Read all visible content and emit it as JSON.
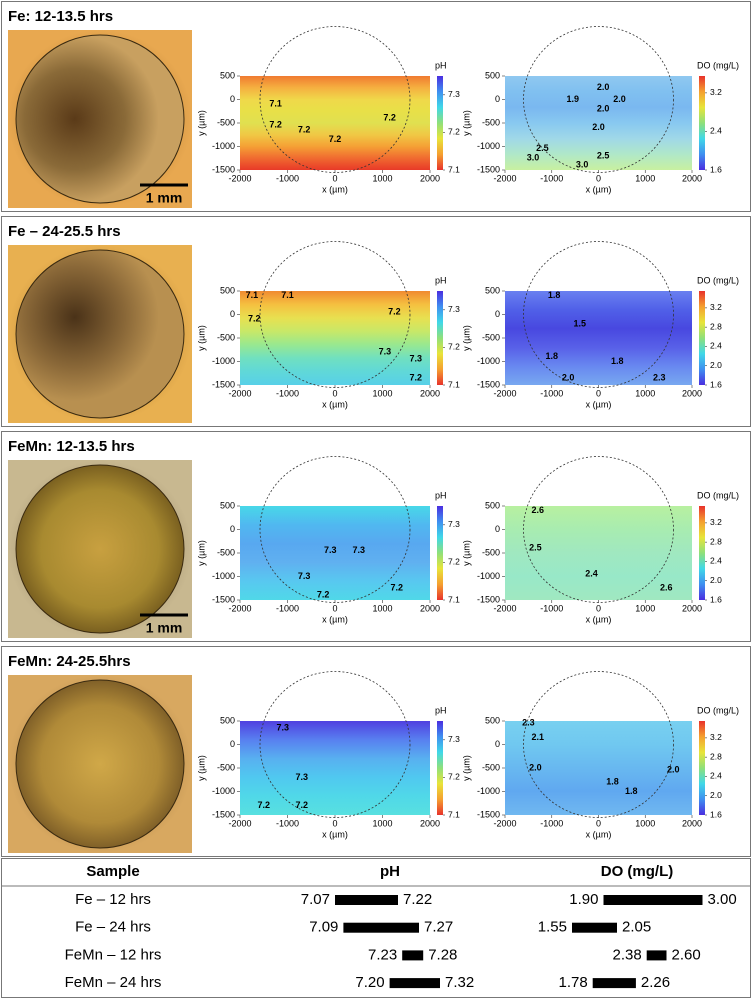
{
  "map_axes": {
    "xlabel": "x (µm)",
    "ylabel": "y (µm)",
    "xlim": [
      -2000,
      2000
    ],
    "ylim": [
      -1500,
      500
    ],
    "xticks": [
      -2000,
      -1000,
      0,
      1000,
      2000
    ],
    "yticks": [
      500,
      0,
      -500,
      -1000,
      -1500
    ]
  },
  "panels": [
    {
      "title": "Fe: 12-13.5 hrs",
      "scale_bar": "1 mm",
      "ph": {
        "label": "pH",
        "clim": [
          7.1,
          7.35
        ],
        "ticks": [
          7.3,
          7.2,
          7.1
        ],
        "contours": [
          {
            "text": "7.1",
            "x": -1250,
            "y": -100
          },
          {
            "text": "7.2",
            "x": -1250,
            "y": -550
          },
          {
            "text": "7.2",
            "x": -650,
            "y": -650
          },
          {
            "text": "7.2",
            "x": 0,
            "y": -850
          },
          {
            "text": "7.2",
            "x": 1150,
            "y": -400
          }
        ]
      },
      "do": {
        "label": "DO (mg/L)",
        "clim": [
          1.6,
          3.55
        ],
        "ticks": [
          3.2,
          2.4,
          1.6
        ],
        "contours": [
          {
            "text": "2.0",
            "x": 100,
            "y": 250
          },
          {
            "text": "1.9",
            "x": -550,
            "y": 0
          },
          {
            "text": "2.0",
            "x": 100,
            "y": -200
          },
          {
            "text": "2.0",
            "x": 450,
            "y": 0
          },
          {
            "text": "2.0",
            "x": 0,
            "y": -600
          },
          {
            "text": "2.5",
            "x": -1200,
            "y": -1050
          },
          {
            "text": "3.0",
            "x": -1400,
            "y": -1250
          },
          {
            "text": "3.0",
            "x": -350,
            "y": -1400
          },
          {
            "text": "2.5",
            "x": 100,
            "y": -1200
          }
        ]
      }
    },
    {
      "title": "Fe – 24-25.5 hrs",
      "ph": {
        "label": "pH",
        "clim": [
          7.1,
          7.35
        ],
        "ticks": [
          7.3,
          7.2,
          7.1
        ],
        "contours": [
          {
            "text": "7.1",
            "x": -1750,
            "y": 400
          },
          {
            "text": "7.1",
            "x": -1000,
            "y": 400
          },
          {
            "text": "7.2",
            "x": -1700,
            "y": -100
          },
          {
            "text": "7.2",
            "x": 1250,
            "y": 50
          },
          {
            "text": "7.3",
            "x": 1050,
            "y": -800
          },
          {
            "text": "7.3",
            "x": 1700,
            "y": -950
          },
          {
            "text": "7.2",
            "x": 1700,
            "y": -1350
          }
        ]
      },
      "do": {
        "label": "DO (mg/L)",
        "clim": [
          1.6,
          3.55
        ],
        "ticks": [
          3.2,
          2.8,
          2.4,
          {
            "value": 2,
            "label": "2.0"
          },
          1.6
        ],
        "contours": [
          {
            "text": "1.8",
            "x": -950,
            "y": 400
          },
          {
            "text": "1.5",
            "x": -400,
            "y": -200
          },
          {
            "text": "1.8",
            "x": -1000,
            "y": -900
          },
          {
            "text": "1.8",
            "x": 400,
            "y": -1000
          },
          {
            "text": "2.0",
            "x": -650,
            "y": -1350
          },
          {
            "text": "2.3",
            "x": 1300,
            "y": -1350
          }
        ]
      }
    },
    {
      "title": "FeMn: 12-13.5 hrs",
      "scale_bar": "1 mm",
      "ph": {
        "label": "pH",
        "clim": [
          7.1,
          7.35
        ],
        "ticks": [
          7.3,
          7.2,
          7.1
        ],
        "contours": [
          {
            "text": "7.3",
            "x": -100,
            "y": -450
          },
          {
            "text": "7.3",
            "x": 500,
            "y": -450
          },
          {
            "text": "7.3",
            "x": -650,
            "y": -1000
          },
          {
            "text": "7.2",
            "x": -250,
            "y": -1400
          },
          {
            "text": "7.2",
            "x": 1300,
            "y": -1250
          }
        ]
      },
      "do": {
        "label": "DO (mg/L)",
        "clim": [
          1.6,
          3.55
        ],
        "ticks": [
          3.2,
          2.8,
          2.4,
          {
            "value": 2,
            "label": "2.0"
          },
          1.6
        ],
        "contours": [
          {
            "text": "2.6",
            "x": -1300,
            "y": 400
          },
          {
            "text": "2.5",
            "x": -1350,
            "y": -400
          },
          {
            "text": "2.4",
            "x": -150,
            "y": -950
          },
          {
            "text": "2.6",
            "x": 1450,
            "y": -1250
          }
        ]
      }
    },
    {
      "title": "FeMn: 24-25.5hrs",
      "ph": {
        "label": "pH",
        "clim": [
          7.1,
          7.35
        ],
        "ticks": [
          7.3,
          7.2,
          7.1
        ],
        "contours": [
          {
            "text": "7.3",
            "x": -1100,
            "y": 350
          },
          {
            "text": "7.3",
            "x": -700,
            "y": -700
          },
          {
            "text": "7.2",
            "x": -1500,
            "y": -1300
          },
          {
            "text": "7.2",
            "x": -700,
            "y": -1300
          }
        ]
      },
      "do": {
        "label": "DO (mg/L)",
        "clim": [
          1.6,
          3.55
        ],
        "ticks": [
          3.2,
          2.8,
          2.4,
          {
            "value": 2,
            "label": "2.0"
          },
          1.6
        ],
        "contours": [
          {
            "text": "2.3",
            "x": -1500,
            "y": 450
          },
          {
            "text": "2.1",
            "x": -1300,
            "y": 150
          },
          {
            "text": "2.0",
            "x": -1350,
            "y": -500
          },
          {
            "text": "1.8",
            "x": 300,
            "y": -800
          },
          {
            "text": "1.8",
            "x": 700,
            "y": -1000
          },
          {
            "text": "2.0",
            "x": 1600,
            "y": -550
          }
        ]
      }
    }
  ],
  "table": {
    "header": [
      "Sample",
      "pH",
      "DO (mg/L)"
    ],
    "rows": [
      {
        "sample": "Fe – 12 hrs",
        "ph": [
          7.07,
          7.22
        ],
        "do": [
          {
            "value": 1.9,
            "label": "1.90"
          },
          {
            "value": 3,
            "label": "3.00"
          }
        ]
      },
      {
        "sample": "Fe – 24 hrs",
        "ph": [
          7.09,
          7.27
        ],
        "do": [
          1.55,
          2.05
        ]
      },
      {
        "sample": "FeMn – 12 hrs",
        "ph": [
          7.23,
          7.28
        ],
        "do": [
          2.38,
          {
            "value": 2.6,
            "label": "2.60"
          }
        ]
      },
      {
        "sample": "FeMn – 24 hrs",
        "ph": [
          {
            "value": 7.2,
            "label": "7.20"
          },
          7.32
        ],
        "do": [
          1.78,
          2.26
        ]
      }
    ]
  }
}
